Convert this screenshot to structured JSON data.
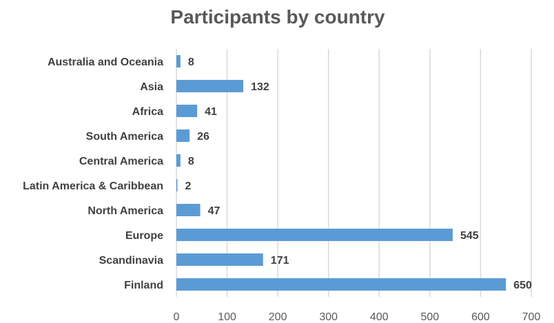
{
  "chart_data": {
    "type": "bar",
    "orientation": "horizontal",
    "title": "Participants by country",
    "xlabel": "",
    "ylabel": "",
    "categories": [
      "Australia and Oceania",
      "Asia",
      "Africa",
      "South America",
      "Central America",
      "Latin America & Caribbean",
      "North America",
      "Europe",
      "Scandinavia",
      "Finland"
    ],
    "values": [
      8,
      132,
      41,
      26,
      8,
      2,
      47,
      545,
      171,
      650
    ],
    "data_labels": [
      "8",
      "132",
      "41",
      "26",
      "8",
      "2",
      "47",
      "545",
      "171",
      "650"
    ],
    "xlim": [
      0,
      700
    ],
    "xticks": [
      0,
      100,
      200,
      300,
      400,
      500,
      600,
      700
    ],
    "xtick_labels": [
      "0",
      "100",
      "200",
      "300",
      "400",
      "500",
      "600",
      "700"
    ],
    "grid": "vertical",
    "legend": "none",
    "colors": {
      "bar": "#5B9BD5",
      "grid": "#D9D9D9",
      "text": "#404040",
      "title": "#595959"
    }
  }
}
